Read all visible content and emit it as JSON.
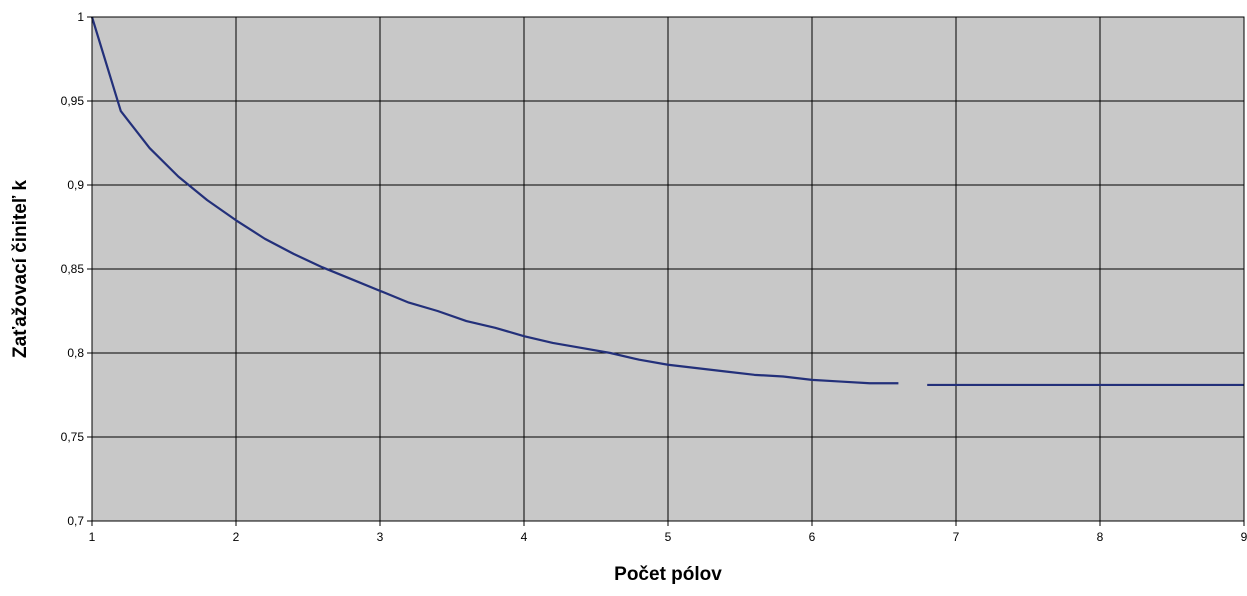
{
  "chart_data": {
    "type": "line",
    "title": "",
    "xlabel": "Počet pólov",
    "ylabel": "Zaťažovací činiteľ k",
    "xlim": [
      1,
      9
    ],
    "ylim": [
      0.7,
      1
    ],
    "xticks": [
      1,
      2,
      3,
      4,
      5,
      6,
      7,
      8,
      9
    ],
    "xtick_labels": [
      "1",
      "2",
      "3",
      "4",
      "5",
      "6",
      "7",
      "8",
      "9"
    ],
    "yticks": [
      0.7,
      0.75,
      0.8,
      0.85,
      0.9,
      0.95,
      1
    ],
    "ytick_labels": [
      "0,7",
      "0,75",
      "0,8",
      "0,85",
      "0,9",
      "0,95",
      "1"
    ],
    "grid": true,
    "legend": "none",
    "colors": {
      "plot_bg": "#c8c8c8",
      "line": "#23307a",
      "grid": "#000000"
    },
    "series": [
      {
        "name": "",
        "segments": [
          {
            "x": [
              1.0,
              1.2,
              1.4,
              1.6,
              1.8,
              2.0,
              2.2,
              2.4,
              2.6,
              2.8,
              3.0,
              3.2,
              3.4,
              3.6,
              3.8,
              4.0,
              4.2,
              4.4,
              4.6,
              4.8,
              5.0,
              5.2,
              5.4,
              5.6,
              5.8,
              6.0,
              6.2,
              6.4,
              6.6
            ],
            "y": [
              1.0,
              0.944,
              0.922,
              0.905,
              0.891,
              0.879,
              0.868,
              0.859,
              0.851,
              0.844,
              0.837,
              0.83,
              0.825,
              0.819,
              0.815,
              0.81,
              0.806,
              0.803,
              0.8,
              0.796,
              0.793,
              0.791,
              0.789,
              0.787,
              0.786,
              0.784,
              0.783,
              0.782,
              0.782
            ]
          },
          {
            "x": [
              6.8,
              7.0,
              7.2,
              7.4,
              7.6,
              7.8,
              8.0,
              8.2,
              8.4,
              8.6,
              8.8,
              9.0
            ],
            "y": [
              0.781,
              0.781,
              0.781,
              0.781,
              0.781,
              0.781,
              0.781,
              0.781,
              0.781,
              0.781,
              0.781,
              0.781
            ]
          }
        ]
      }
    ]
  }
}
